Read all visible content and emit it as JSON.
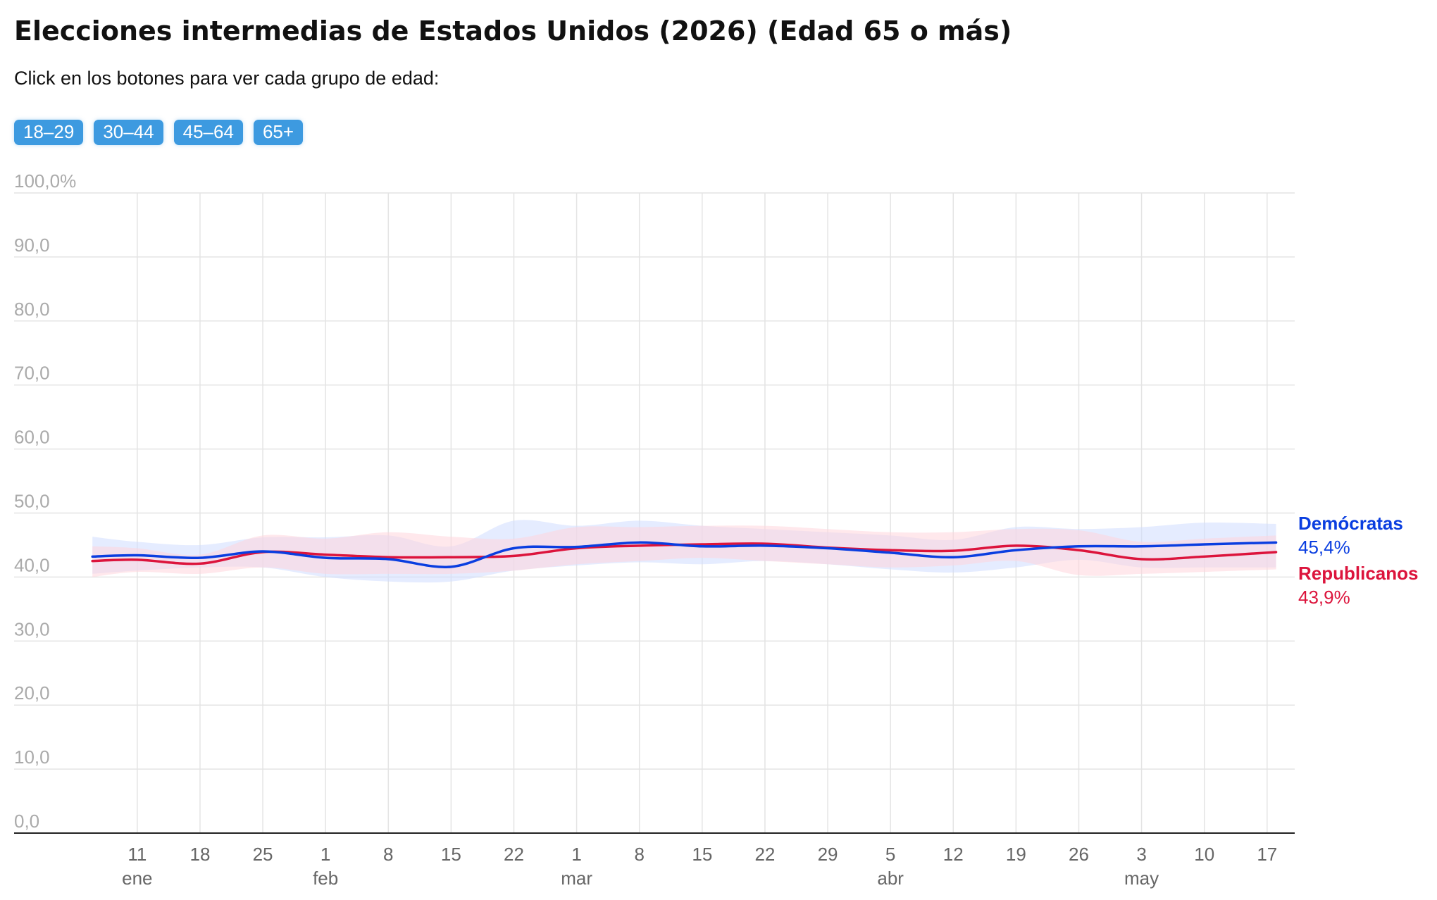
{
  "header": {
    "title": "Elecciones intermedias de Estados Unidos (2026) (Edad 65 o más)",
    "subtitle": "Click en los botones para ver cada grupo de edad:"
  },
  "age_buttons": [
    "18–29",
    "30–44",
    "45–64",
    "65+"
  ],
  "colors": {
    "democrats": "#0a3ee0",
    "republicans": "#dc143c",
    "democrats_band": "#cfdcff",
    "republicans_band": "#ffd6dc",
    "button": "#3d9ae0",
    "grid": "#e4e4e4",
    "axis": "#222222"
  },
  "chart_data": {
    "type": "line",
    "title": "Elecciones intermedias de Estados Unidos (2026) (Edad 65 o más)",
    "xlabel": "",
    "ylabel": "",
    "ylim": [
      0,
      100
    ],
    "xlim": [
      "2026-01-03",
      "2026-05-20"
    ],
    "y_ticks": [
      "100,0%",
      "90,0",
      "80,0",
      "70,0",
      "60,0",
      "50,0",
      "40,0",
      "30,0",
      "20,0",
      "10,0",
      "0,0"
    ],
    "x_ticks": [
      {
        "date": "2026-01-11",
        "label": "11",
        "month": "ene"
      },
      {
        "date": "2026-01-18",
        "label": "18",
        "month": ""
      },
      {
        "date": "2026-01-25",
        "label": "25",
        "month": ""
      },
      {
        "date": "2026-02-01",
        "label": "1",
        "month": "feb"
      },
      {
        "date": "2026-02-08",
        "label": "8",
        "month": ""
      },
      {
        "date": "2026-02-15",
        "label": "15",
        "month": ""
      },
      {
        "date": "2026-02-22",
        "label": "22",
        "month": ""
      },
      {
        "date": "2026-03-01",
        "label": "1",
        "month": "mar"
      },
      {
        "date": "2026-03-08",
        "label": "8",
        "month": ""
      },
      {
        "date": "2026-03-15",
        "label": "15",
        "month": ""
      },
      {
        "date": "2026-03-22",
        "label": "22",
        "month": ""
      },
      {
        "date": "2026-03-29",
        "label": "29",
        "month": ""
      },
      {
        "date": "2026-04-05",
        "label": "5",
        "month": "abr"
      },
      {
        "date": "2026-04-12",
        "label": "12",
        "month": ""
      },
      {
        "date": "2026-04-19",
        "label": "19",
        "month": ""
      },
      {
        "date": "2026-04-26",
        "label": "26",
        "month": ""
      },
      {
        "date": "2026-05-03",
        "label": "3",
        "month": "may"
      },
      {
        "date": "2026-05-10",
        "label": "10",
        "month": ""
      },
      {
        "date": "2026-05-17",
        "label": "17",
        "month": ""
      }
    ],
    "grid": true,
    "legend": "right, at line ends",
    "series": [
      {
        "name": "Demócratas",
        "label_value": "45,4%",
        "color": "#0a3ee0",
        "points": [
          [
            "2026-01-06",
            43.2
          ],
          [
            "2026-01-11",
            43.4
          ],
          [
            "2026-01-18",
            43.0
          ],
          [
            "2026-01-25",
            44.0
          ],
          [
            "2026-02-01",
            43.0
          ],
          [
            "2026-02-08",
            42.8
          ],
          [
            "2026-02-15",
            41.6
          ],
          [
            "2026-02-22",
            44.5
          ],
          [
            "2026-03-01",
            44.7
          ],
          [
            "2026-03-08",
            45.4
          ],
          [
            "2026-03-15",
            44.8
          ],
          [
            "2026-03-22",
            44.9
          ],
          [
            "2026-03-29",
            44.5
          ],
          [
            "2026-04-05",
            43.8
          ],
          [
            "2026-04-12",
            43.1
          ],
          [
            "2026-04-19",
            44.2
          ],
          [
            "2026-04-26",
            44.8
          ],
          [
            "2026-05-03",
            44.8
          ],
          [
            "2026-05-10",
            45.1
          ],
          [
            "2026-05-18",
            45.4
          ]
        ],
        "band_low": [
          40.5,
          41.0,
          41.5,
          41.5,
          40.0,
          39.3,
          39.3,
          41.0,
          41.8,
          42.3,
          42.0,
          42.5,
          42.0,
          41.2,
          40.7,
          41.5,
          42.7,
          41.5,
          41.5,
          41.5
        ],
        "band_high": [
          46.3,
          45.5,
          45.0,
          46.2,
          46.2,
          46.5,
          44.8,
          48.8,
          48.0,
          48.8,
          48.0,
          47.5,
          47.0,
          46.5,
          45.8,
          47.8,
          47.5,
          47.8,
          48.5,
          48.3
        ]
      },
      {
        "name": "Republicanos",
        "label_value": "43,9%",
        "color": "#dc143c",
        "points": [
          [
            "2026-01-06",
            42.5
          ],
          [
            "2026-01-11",
            42.7
          ],
          [
            "2026-01-18",
            42.1
          ],
          [
            "2026-01-25",
            43.9
          ],
          [
            "2026-02-01",
            43.5
          ],
          [
            "2026-02-08",
            43.1
          ],
          [
            "2026-02-15",
            43.1
          ],
          [
            "2026-02-22",
            43.3
          ],
          [
            "2026-03-01",
            44.5
          ],
          [
            "2026-03-08",
            44.9
          ],
          [
            "2026-03-15",
            45.1
          ],
          [
            "2026-03-22",
            45.2
          ],
          [
            "2026-03-29",
            44.6
          ],
          [
            "2026-04-05",
            44.2
          ],
          [
            "2026-04-12",
            44.1
          ],
          [
            "2026-04-19",
            44.9
          ],
          [
            "2026-04-26",
            44.2
          ],
          [
            "2026-05-03",
            42.8
          ],
          [
            "2026-05-10",
            43.2
          ],
          [
            "2026-05-18",
            43.9
          ]
        ],
        "band_low": [
          40.0,
          40.8,
          40.5,
          41.5,
          40.5,
          40.5,
          40.5,
          41.0,
          42.0,
          42.5,
          43.0,
          42.5,
          42.0,
          41.5,
          41.8,
          42.5,
          40.3,
          40.5,
          40.8,
          41.2
        ],
        "band_high": [
          44.8,
          44.5,
          43.5,
          46.5,
          46.0,
          47.0,
          46.3,
          46.0,
          47.8,
          47.8,
          48.0,
          48.0,
          47.5,
          47.0,
          47.0,
          47.5,
          47.3,
          45.5,
          46.0,
          46.5
        ]
      }
    ]
  }
}
